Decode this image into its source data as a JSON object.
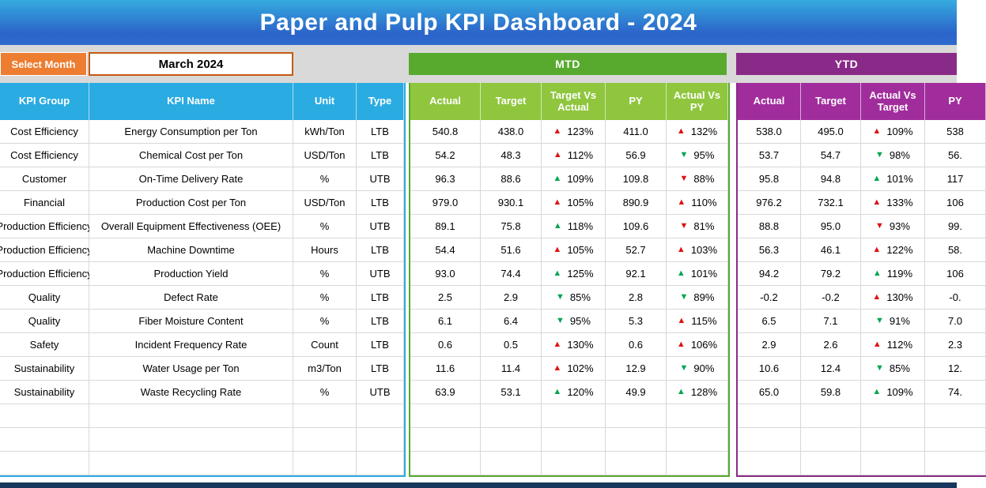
{
  "title": "Paper and Pulp KPI Dashboard - 2024",
  "controls": {
    "select_month_label": "Select Month",
    "selected_month": "March 2024"
  },
  "sections": {
    "mtd_label": "MTD",
    "ytd_label": "YTD"
  },
  "columns": {
    "kpi_group": "KPI Group",
    "kpi_name": "KPI Name",
    "unit": "Unit",
    "type": "Type",
    "mtd": [
      "Actual",
      "Target",
      "Target Vs Actual",
      "PY",
      "Actual Vs PY"
    ],
    "ytd": [
      "Actual",
      "Target",
      "Actual Vs Target",
      "PY"
    ]
  },
  "colors": {
    "header_blue": "#2aabe2",
    "mtd_bar_green": "#57aa2e",
    "mtd_header_green": "#8fc63e",
    "ytd_bar_purple": "#8a2a88",
    "ytd_header_purple": "#a12d9d",
    "select_month_orange": "#ed7d31",
    "month_border_orange": "#c55a11",
    "up_bad_red": "#e01212",
    "good_green": "#00a651",
    "banner_top": "#35abdf",
    "banner_bottom": "#2c63c9",
    "band_gray": "#d9d9d9",
    "footer_navy": "#17375e"
  },
  "empty_row_count": 3,
  "rows": [
    {
      "group": "Cost Efficiency",
      "name": "Energy Consumption per Ton",
      "unit": "kWh/Ton",
      "type": "LTB",
      "mtd": {
        "actual": "540.8",
        "target": "438.0",
        "tva": {
          "v": "123%",
          "d": "up",
          "c": "red"
        },
        "py": "411.0",
        "avpy": {
          "v": "132%",
          "d": "up",
          "c": "red"
        }
      },
      "ytd": {
        "actual": "538.0",
        "target": "495.0",
        "avt": {
          "v": "109%",
          "d": "up",
          "c": "red"
        },
        "py": "538"
      }
    },
    {
      "group": "Cost Efficiency",
      "name": "Chemical Cost per Ton",
      "unit": "USD/Ton",
      "type": "LTB",
      "mtd": {
        "actual": "54.2",
        "target": "48.3",
        "tva": {
          "v": "112%",
          "d": "up",
          "c": "red"
        },
        "py": "56.9",
        "avpy": {
          "v": "95%",
          "d": "down",
          "c": "green"
        }
      },
      "ytd": {
        "actual": "53.7",
        "target": "54.7",
        "avt": {
          "v": "98%",
          "d": "down",
          "c": "green"
        },
        "py": "56."
      }
    },
    {
      "group": "Customer",
      "name": "On-Time Delivery Rate",
      "unit": "%",
      "type": "UTB",
      "mtd": {
        "actual": "96.3",
        "target": "88.6",
        "tva": {
          "v": "109%",
          "d": "up",
          "c": "green"
        },
        "py": "109.8",
        "avpy": {
          "v": "88%",
          "d": "down",
          "c": "red"
        }
      },
      "ytd": {
        "actual": "95.8",
        "target": "94.8",
        "avt": {
          "v": "101%",
          "d": "up",
          "c": "green"
        },
        "py": "117"
      }
    },
    {
      "group": "Financial",
      "name": "Production Cost per Ton",
      "unit": "USD/Ton",
      "type": "LTB",
      "mtd": {
        "actual": "979.0",
        "target": "930.1",
        "tva": {
          "v": "105%",
          "d": "up",
          "c": "red"
        },
        "py": "890.9",
        "avpy": {
          "v": "110%",
          "d": "up",
          "c": "red"
        }
      },
      "ytd": {
        "actual": "976.2",
        "target": "732.1",
        "avt": {
          "v": "133%",
          "d": "up",
          "c": "red"
        },
        "py": "106"
      }
    },
    {
      "group": "Production Efficiency",
      "name": "Overall Equipment Effectiveness (OEE)",
      "unit": "%",
      "type": "UTB",
      "mtd": {
        "actual": "89.1",
        "target": "75.8",
        "tva": {
          "v": "118%",
          "d": "up",
          "c": "green"
        },
        "py": "109.6",
        "avpy": {
          "v": "81%",
          "d": "down",
          "c": "red"
        }
      },
      "ytd": {
        "actual": "88.8",
        "target": "95.0",
        "avt": {
          "v": "93%",
          "d": "down",
          "c": "red"
        },
        "py": "99."
      }
    },
    {
      "group": "Production Efficiency",
      "name": "Machine Downtime",
      "unit": "Hours",
      "type": "LTB",
      "mtd": {
        "actual": "54.4",
        "target": "51.6",
        "tva": {
          "v": "105%",
          "d": "up",
          "c": "red"
        },
        "py": "52.7",
        "avpy": {
          "v": "103%",
          "d": "up",
          "c": "red"
        }
      },
      "ytd": {
        "actual": "56.3",
        "target": "46.1",
        "avt": {
          "v": "122%",
          "d": "up",
          "c": "red"
        },
        "py": "58."
      }
    },
    {
      "group": "Production Efficiency",
      "name": "Production Yield",
      "unit": "%",
      "type": "UTB",
      "mtd": {
        "actual": "93.0",
        "target": "74.4",
        "tva": {
          "v": "125%",
          "d": "up",
          "c": "green"
        },
        "py": "92.1",
        "avpy": {
          "v": "101%",
          "d": "up",
          "c": "green"
        }
      },
      "ytd": {
        "actual": "94.2",
        "target": "79.2",
        "avt": {
          "v": "119%",
          "d": "up",
          "c": "green"
        },
        "py": "106"
      }
    },
    {
      "group": "Quality",
      "name": "Defect Rate",
      "unit": "%",
      "type": "LTB",
      "mtd": {
        "actual": "2.5",
        "target": "2.9",
        "tva": {
          "v": "85%",
          "d": "down",
          "c": "green"
        },
        "py": "2.8",
        "avpy": {
          "v": "89%",
          "d": "down",
          "c": "green"
        }
      },
      "ytd": {
        "actual": "-0.2",
        "target": "-0.2",
        "avt": {
          "v": "130%",
          "d": "up",
          "c": "red"
        },
        "py": "-0."
      }
    },
    {
      "group": "Quality",
      "name": "Fiber Moisture Content",
      "unit": "%",
      "type": "LTB",
      "mtd": {
        "actual": "6.1",
        "target": "6.4",
        "tva": {
          "v": "95%",
          "d": "down",
          "c": "green"
        },
        "py": "5.3",
        "avpy": {
          "v": "115%",
          "d": "up",
          "c": "red"
        }
      },
      "ytd": {
        "actual": "6.5",
        "target": "7.1",
        "avt": {
          "v": "91%",
          "d": "down",
          "c": "green"
        },
        "py": "7.0"
      }
    },
    {
      "group": "Safety",
      "name": "Incident Frequency Rate",
      "unit": "Count",
      "type": "LTB",
      "mtd": {
        "actual": "0.6",
        "target": "0.5",
        "tva": {
          "v": "130%",
          "d": "up",
          "c": "red"
        },
        "py": "0.6",
        "avpy": {
          "v": "106%",
          "d": "up",
          "c": "red"
        }
      },
      "ytd": {
        "actual": "2.9",
        "target": "2.6",
        "avt": {
          "v": "112%",
          "d": "up",
          "c": "red"
        },
        "py": "2.3"
      }
    },
    {
      "group": "Sustainability",
      "name": "Water Usage per Ton",
      "unit": "m3/Ton",
      "type": "LTB",
      "mtd": {
        "actual": "11.6",
        "target": "11.4",
        "tva": {
          "v": "102%",
          "d": "up",
          "c": "red"
        },
        "py": "12.9",
        "avpy": {
          "v": "90%",
          "d": "down",
          "c": "green"
        }
      },
      "ytd": {
        "actual": "10.6",
        "target": "12.4",
        "avt": {
          "v": "85%",
          "d": "down",
          "c": "green"
        },
        "py": "12."
      }
    },
    {
      "group": "Sustainability",
      "name": "Waste Recycling Rate",
      "unit": "%",
      "type": "UTB",
      "mtd": {
        "actual": "63.9",
        "target": "53.1",
        "tva": {
          "v": "120%",
          "d": "up",
          "c": "green"
        },
        "py": "49.9",
        "avpy": {
          "v": "128%",
          "d": "up",
          "c": "green"
        }
      },
      "ytd": {
        "actual": "65.0",
        "target": "59.8",
        "avt": {
          "v": "109%",
          "d": "up",
          "c": "green"
        },
        "py": "74."
      }
    }
  ]
}
